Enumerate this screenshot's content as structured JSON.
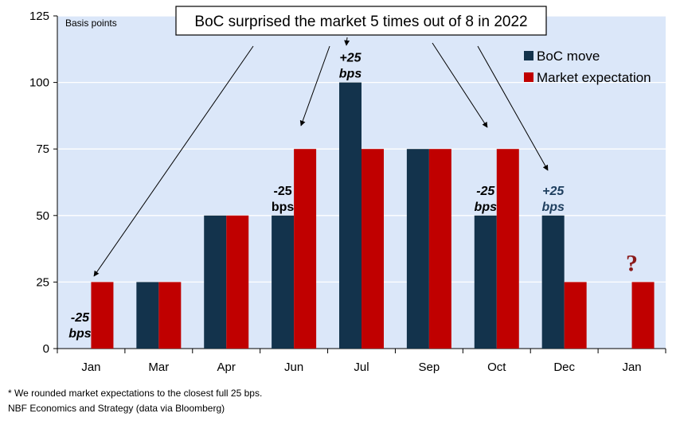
{
  "chart_data": {
    "type": "bar",
    "title": "BoC surprised the market 5 times out of 8 in 2022",
    "ylabel": "Basis points",
    "xlabel": "",
    "ylim": [
      0,
      125
    ],
    "yticks": [
      0,
      25,
      50,
      75,
      100,
      125
    ],
    "grid": true,
    "legend_position": "top-right",
    "categories": [
      "Jan",
      "Mar",
      "Apr",
      "Jun",
      "Jul",
      "Sep",
      "Oct",
      "Dec",
      "Jan"
    ],
    "series": [
      {
        "name": "BoC move",
        "color": "#13334c",
        "values": [
          0,
          25,
          50,
          50,
          100,
          75,
          50,
          50,
          null
        ]
      },
      {
        "name": "Market expectation",
        "color": "#c00000",
        "values": [
          25,
          25,
          50,
          75,
          75,
          75,
          75,
          25,
          25
        ]
      }
    ],
    "annotations": [
      {
        "category_index": 0,
        "line1": "-25",
        "line2": "bps",
        "color": "#000000",
        "italic": true
      },
      {
        "category_index": 3,
        "line1": "-25",
        "line2": "bps",
        "color": "#000000",
        "italic": false
      },
      {
        "category_index": 4,
        "line1": "+25",
        "line2": "bps",
        "color": "#000000",
        "italic": true
      },
      {
        "category_index": 6,
        "line1": "-25",
        "line2": "bps",
        "color": "#000000",
        "italic": true
      },
      {
        "category_index": 7,
        "line1": "+25",
        "line2": "bps",
        "color": "#1f3f5f",
        "italic": true
      }
    ],
    "question_mark": {
      "category_index": 8,
      "text": "?",
      "color": "#8b1a1a"
    }
  },
  "footnotes": {
    "note": "* We rounded market expectations to the closest full 25 bps.",
    "source": "NBF Economics and Strategy (data via Bloomberg)"
  }
}
